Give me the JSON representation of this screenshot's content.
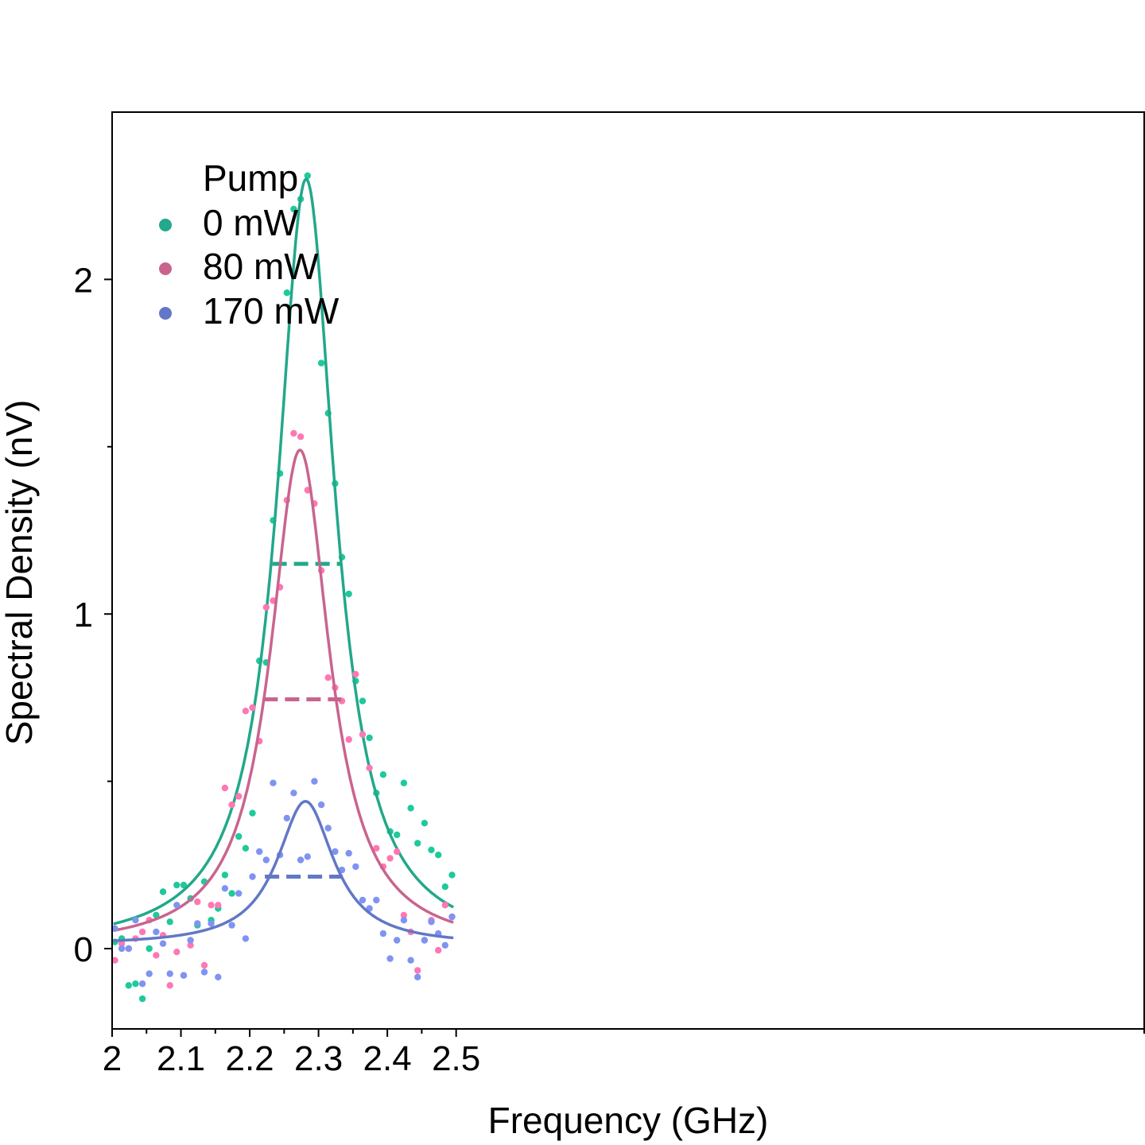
{
  "chart_data": {
    "type": "scatter",
    "xlabel": "Frequency (GHz)",
    "ylabel": "Spectral Density (nV)",
    "xlim": [
      2.0,
      3.5
    ],
    "ylim": [
      -0.24,
      2.5
    ],
    "x_ticks": [
      2,
      2.1,
      2.2,
      2.3,
      2.4,
      2.5
    ],
    "x_tick_labels": [
      "2",
      "2.1",
      "2.2",
      "2.3",
      "2.4",
      "2.5"
    ],
    "y_ticks": [
      0,
      1,
      2
    ],
    "y_tick_labels": [
      "0",
      "1",
      "2"
    ],
    "y_minor_ticks": [
      0.5,
      1.5
    ],
    "grid": false,
    "legend": {
      "title": "Pump",
      "position": "top-left"
    },
    "series": [
      {
        "name": "0 mW",
        "line_color": "#22a88a",
        "point_color": "#1fc99b",
        "fit": {
          "model": "lorentzian",
          "center": 2.282,
          "fwhm": 0.102,
          "amplitude": 2.3,
          "baseline": 0.0
        },
        "half_max": {
          "x_start": 2.233,
          "x_end": 2.333,
          "y": 1.15
        },
        "points": [
          [
            2.004,
            0.02
          ],
          [
            2.014,
            0.03
          ],
          [
            2.024,
            -0.11
          ],
          [
            2.034,
            -0.105
          ],
          [
            2.044,
            -0.15
          ],
          [
            2.054,
            0.0
          ],
          [
            2.064,
            0.1
          ],
          [
            2.074,
            0.17
          ],
          [
            2.084,
            0.08
          ],
          [
            2.094,
            0.19
          ],
          [
            2.104,
            0.19
          ],
          [
            2.114,
            0.15
          ],
          [
            2.124,
            0.07
          ],
          [
            2.134,
            0.2
          ],
          [
            2.144,
            0.085
          ],
          [
            2.154,
            0.12
          ],
          [
            2.164,
            0.22
          ],
          [
            2.174,
            0.165
          ],
          [
            2.184,
            0.335
          ],
          [
            2.194,
            0.3
          ],
          [
            2.204,
            0.405
          ],
          [
            2.214,
            0.86
          ],
          [
            2.224,
            0.855
          ],
          [
            2.234,
            1.28
          ],
          [
            2.244,
            1.42
          ],
          [
            2.254,
            1.96
          ],
          [
            2.264,
            2.21
          ],
          [
            2.274,
            2.24
          ],
          [
            2.284,
            2.31
          ],
          [
            2.304,
            1.75
          ],
          [
            2.314,
            1.6
          ],
          [
            2.324,
            1.39
          ],
          [
            2.334,
            1.17
          ],
          [
            2.344,
            1.06
          ],
          [
            2.354,
            0.8
          ],
          [
            2.364,
            0.74
          ],
          [
            2.374,
            0.63
          ],
          [
            2.384,
            0.465
          ],
          [
            2.394,
            0.52
          ],
          [
            2.404,
            0.35
          ],
          [
            2.414,
            0.34
          ],
          [
            2.424,
            0.495
          ],
          [
            2.434,
            0.42
          ],
          [
            2.444,
            0.315
          ],
          [
            2.454,
            0.375
          ],
          [
            2.464,
            0.295
          ],
          [
            2.474,
            0.28
          ],
          [
            2.484,
            0.185
          ],
          [
            2.494,
            0.22
          ]
        ]
      },
      {
        "name": "80 mW",
        "line_color": "#c9648f",
        "point_color": "#ff77b4",
        "fit": {
          "model": "lorentzian",
          "center": 2.273,
          "fwhm": 0.105,
          "amplitude": 1.49,
          "baseline": 0.0
        },
        "half_max": {
          "x_start": 2.22,
          "x_end": 2.333,
          "y": 0.745
        },
        "points": [
          [
            2.004,
            -0.035
          ],
          [
            2.014,
            0.015
          ],
          [
            2.024,
            0.0
          ],
          [
            2.034,
            0.03
          ],
          [
            2.044,
            0.05
          ],
          [
            2.054,
            0.085
          ],
          [
            2.064,
            -0.02
          ],
          [
            2.074,
            0.04
          ],
          [
            2.084,
            -0.11
          ],
          [
            2.094,
            -0.01
          ],
          [
            2.104,
            -0.08
          ],
          [
            2.114,
            0.01
          ],
          [
            2.124,
            0.14
          ],
          [
            2.134,
            -0.05
          ],
          [
            2.144,
            0.13
          ],
          [
            2.154,
            0.13
          ],
          [
            2.164,
            0.48
          ],
          [
            2.174,
            0.43
          ],
          [
            2.184,
            0.455
          ],
          [
            2.194,
            0.71
          ],
          [
            2.204,
            0.72
          ],
          [
            2.214,
            0.62
          ],
          [
            2.224,
            1.02
          ],
          [
            2.234,
            1.04
          ],
          [
            2.244,
            1.08
          ],
          [
            2.254,
            1.34
          ],
          [
            2.264,
            1.54
          ],
          [
            2.274,
            1.53
          ],
          [
            2.284,
            1.37
          ],
          [
            2.294,
            1.33
          ],
          [
            2.304,
            1.13
          ],
          [
            2.314,
            0.81
          ],
          [
            2.324,
            0.78
          ],
          [
            2.334,
            0.74
          ],
          [
            2.344,
            0.625
          ],
          [
            2.354,
            0.82
          ],
          [
            2.364,
            0.64
          ],
          [
            2.374,
            0.54
          ],
          [
            2.384,
            0.3
          ],
          [
            2.394,
            0.245
          ],
          [
            2.404,
            0.27
          ],
          [
            2.414,
            0.29
          ],
          [
            2.424,
            0.1
          ],
          [
            2.434,
            0.05
          ],
          [
            2.444,
            -0.065
          ],
          [
            2.454,
            0.025
          ],
          [
            2.464,
            0.085
          ],
          [
            2.474,
            -0.005
          ],
          [
            2.484,
            0.13
          ],
          [
            2.494,
            0.095
          ]
        ]
      },
      {
        "name": "170 mW",
        "line_color": "#6277c6",
        "point_color": "#7f93f2",
        "fit": {
          "model": "lorentzian",
          "center": 2.281,
          "fwhm": 0.1,
          "amplitude": 0.43,
          "baseline": 0.01
        },
        "half_max": {
          "x_start": 2.222,
          "x_end": 2.335,
          "y": 0.215
        },
        "points": [
          [
            2.004,
            0.06
          ],
          [
            2.014,
            0.0
          ],
          [
            2.024,
            0.0
          ],
          [
            2.034,
            0.085
          ],
          [
            2.044,
            -0.105
          ],
          [
            2.054,
            -0.075
          ],
          [
            2.064,
            0.05
          ],
          [
            2.074,
            0.015
          ],
          [
            2.084,
            -0.075
          ],
          [
            2.094,
            0.13
          ],
          [
            2.104,
            -0.08
          ],
          [
            2.114,
            0.025
          ],
          [
            2.124,
            0.075
          ],
          [
            2.134,
            -0.07
          ],
          [
            2.144,
            0.075
          ],
          [
            2.154,
            -0.085
          ],
          [
            2.164,
            0.18
          ],
          [
            2.174,
            0.07
          ],
          [
            2.184,
            0.165
          ],
          [
            2.194,
            0.03
          ],
          [
            2.204,
            0.215
          ],
          [
            2.214,
            0.29
          ],
          [
            2.224,
            0.265
          ],
          [
            2.234,
            0.495
          ],
          [
            2.244,
            0.28
          ],
          [
            2.254,
            0.39
          ],
          [
            2.264,
            0.465
          ],
          [
            2.274,
            0.265
          ],
          [
            2.284,
            0.275
          ],
          [
            2.294,
            0.5
          ],
          [
            2.304,
            0.43
          ],
          [
            2.314,
            0.36
          ],
          [
            2.324,
            0.29
          ],
          [
            2.334,
            0.235
          ],
          [
            2.344,
            0.285
          ],
          [
            2.354,
            0.245
          ],
          [
            2.364,
            0.145
          ],
          [
            2.374,
            0.12
          ],
          [
            2.384,
            0.145
          ],
          [
            2.394,
            0.045
          ],
          [
            2.404,
            -0.03
          ],
          [
            2.414,
            0.025
          ],
          [
            2.424,
            0.085
          ],
          [
            2.434,
            -0.035
          ],
          [
            2.444,
            -0.085
          ],
          [
            2.454,
            0.025
          ],
          [
            2.464,
            0.08
          ],
          [
            2.474,
            0.045
          ],
          [
            2.484,
            0.01
          ],
          [
            2.494,
            0.095
          ]
        ]
      }
    ]
  }
}
